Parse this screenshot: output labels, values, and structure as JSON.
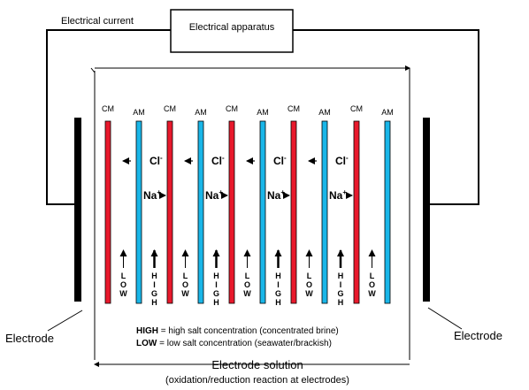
{
  "apparatus": {
    "label": "Electrical apparatus"
  },
  "current": {
    "label": "Electrical current"
  },
  "electrodes": {
    "left_label": "Electrode",
    "right_label": "Electrode"
  },
  "membranes": [
    {
      "label": "CM",
      "color": "#e8192c"
    },
    {
      "label": "AM",
      "color": "#19b6e8"
    },
    {
      "label": "CM",
      "color": "#e8192c"
    },
    {
      "label": "AM",
      "color": "#19b6e8"
    },
    {
      "label": "CM",
      "color": "#e8192c"
    },
    {
      "label": "AM",
      "color": "#19b6e8"
    },
    {
      "label": "CM",
      "color": "#e8192c"
    },
    {
      "label": "AM",
      "color": "#19b6e8"
    },
    {
      "label": "CM",
      "color": "#e8192c"
    },
    {
      "label": "AM",
      "color": "#19b6e8"
    }
  ],
  "ions": {
    "chloride": "Cl",
    "chloride_charge": "-",
    "sodium": "Na",
    "sodium_charge": "+"
  },
  "channels": [
    "LOW",
    "HIGH",
    "LOW",
    "HIGH",
    "LOW",
    "HIGH",
    "LOW",
    "HIGH",
    "LOW"
  ],
  "legend": {
    "high_key": "HIGH",
    "high_text": " = high salt concentration (concentrated brine)",
    "low_key": "LOW",
    "low_text": " = low salt concentration (seawater/brackish)"
  },
  "solution": {
    "line1": "Electrode solution",
    "line2": "(oxidation/reduction reaction at electrodes)"
  }
}
